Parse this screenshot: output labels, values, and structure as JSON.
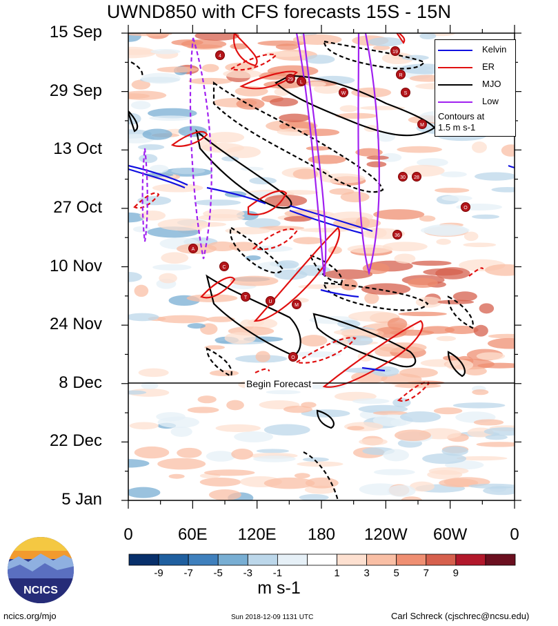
{
  "chart_data": {
    "type": "heatmap",
    "title": "UWND850 with CFS forecasts  15S - 15N",
    "xlabel": "",
    "ylabel": "",
    "x_ticks": [
      "0",
      "60E",
      "120E",
      "180",
      "120W",
      "60W",
      "0"
    ],
    "y_ticks": [
      "15 Sep",
      "29 Sep",
      "13 Oct",
      "27 Oct",
      "10 Nov",
      "24 Nov",
      "8 Dec",
      "22 Dec",
      "5 Jan"
    ],
    "xlim": [
      0,
      360
    ],
    "ylim": [
      "2018-09-15",
      "2019-01-05"
    ],
    "forecast_start": "2018-12-08",
    "forecast_label": "Begin Forecast",
    "colorbar": {
      "labels": [
        "-9",
        "-7",
        "-5",
        "-3",
        "-1",
        "1",
        "3",
        "5",
        "7",
        "9"
      ],
      "colors": [
        "#08306b",
        "#1f5f9f",
        "#3f80bd",
        "#78aed3",
        "#bcd7ea",
        "#e6f0f7",
        "#ffffff",
        "#fde0d0",
        "#f9bfa5",
        "#ef8f72",
        "#d6604d",
        "#b2182b",
        "#6b0f1f"
      ],
      "units": "m s-1"
    },
    "legend": [
      {
        "name": "Kelvin",
        "color": "#1010e0"
      },
      {
        "name": "ER",
        "color": "#e01010"
      },
      {
        "name": "MJO",
        "color": "#000000"
      },
      {
        "name": "Low",
        "color": "#a020f0"
      }
    ],
    "contour_note": [
      "Contours at",
      "1.5 m s-1"
    ],
    "storm_labels": [
      "19",
      "R",
      "S",
      "M",
      "L",
      "W",
      "4",
      "29",
      "30",
      "36",
      "28",
      "O",
      "C",
      "U",
      "T",
      "A",
      "M",
      "O"
    ]
  },
  "footer": {
    "left": "ncics.org/mjo",
    "mid": "Sun 2018-12-09 1131 UTC",
    "right": "Carl Schreck (cjschrec@ncsu.edu)"
  },
  "logo": {
    "text": "NCICS"
  }
}
